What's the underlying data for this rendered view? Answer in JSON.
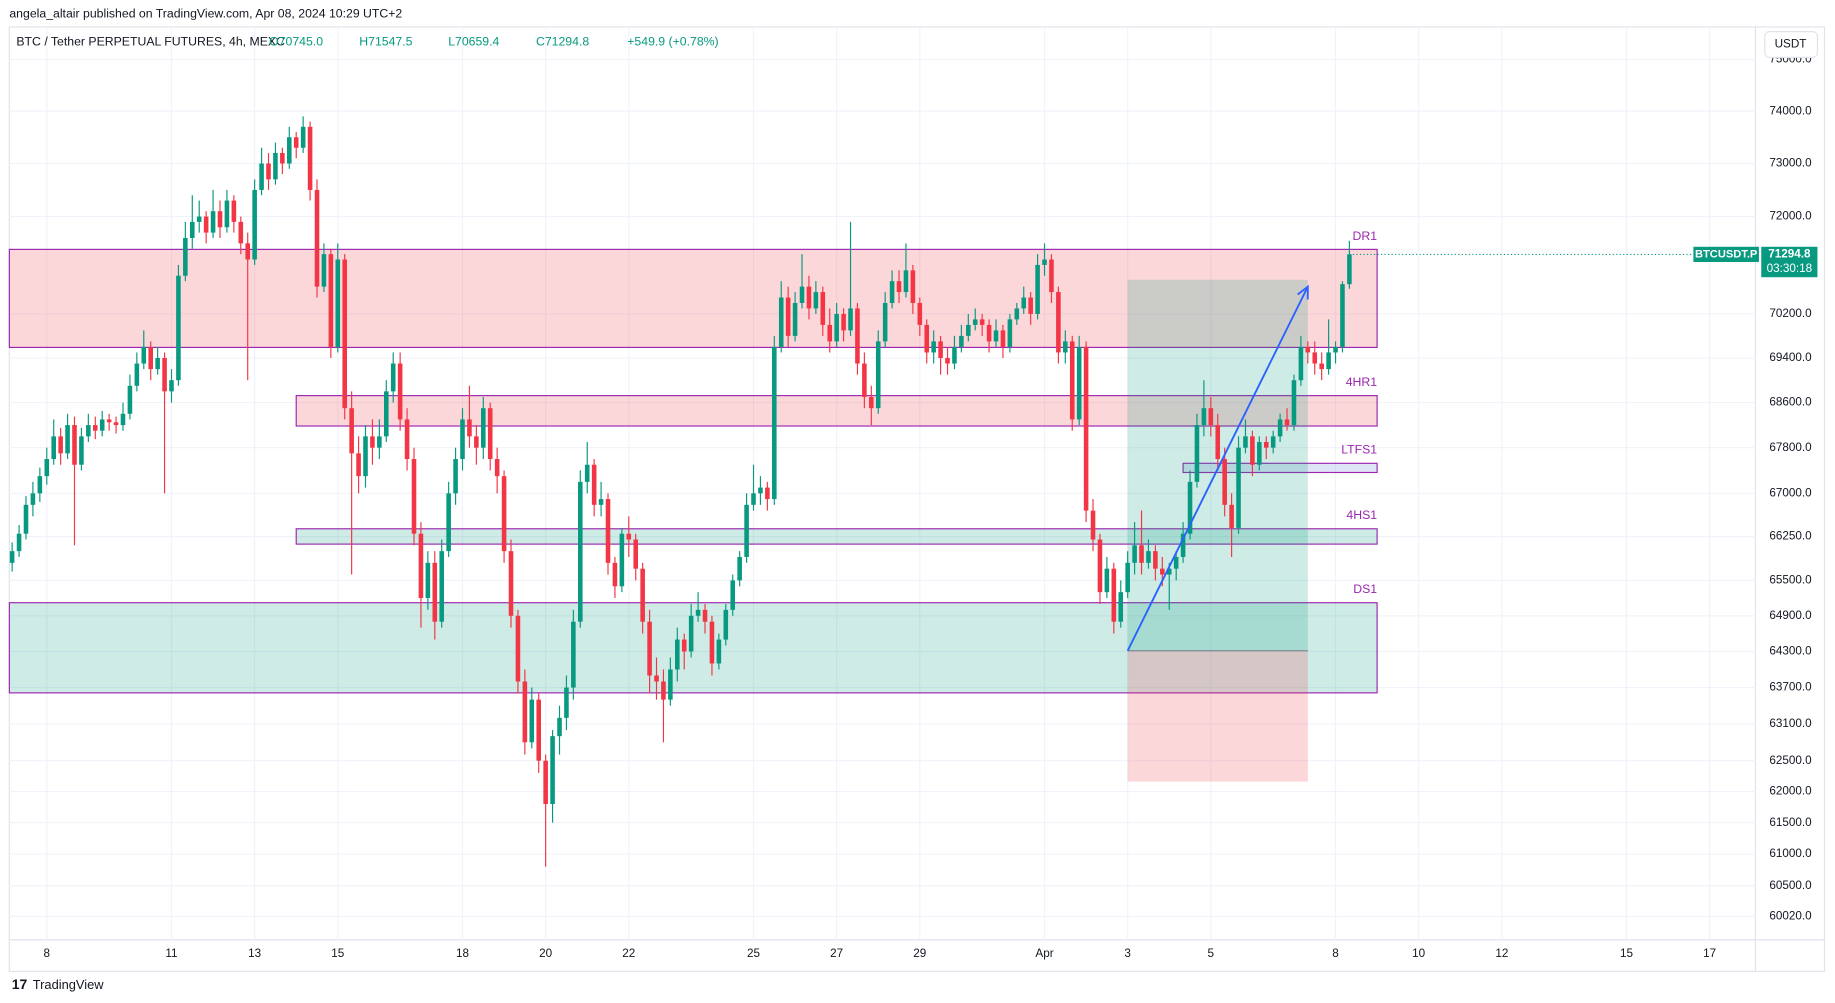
{
  "header": {
    "publisher": "angela_altair published on TradingView.com, Apr 08, 2024 10:29 UTC+2",
    "currency_button": "USDT",
    "logo": "TradingView"
  },
  "chart_data": {
    "type": "candlestick",
    "title": "BTC / Tether PERPETUAL FUTURES, 4h, MEXC",
    "ohlc_labels": [
      "O70745.0",
      "H71547.5",
      "L70659.4",
      "C71294.8",
      "+549.9 (+0.78%)"
    ],
    "up_color": "#089981",
    "down_color": "#f23645",
    "open": [
      65800,
      66000,
      66300,
      66800,
      67000,
      67300,
      67600,
      68000,
      67700,
      68200,
      67500,
      68000,
      68200,
      68100,
      68300,
      68250,
      68200,
      68400,
      68900,
      69300,
      69600,
      69200,
      69400,
      68800,
      69000,
      70900,
      71600,
      71900,
      72000,
      71700,
      72100,
      71800,
      72300,
      71900,
      71500,
      71200,
      72500,
      73000,
      72700,
      73200,
      73000,
      73500,
      73300,
      73700,
      72500,
      70700,
      71300,
      69600,
      71200,
      68500,
      67700,
      67300,
      68000,
      67800,
      68000,
      68800,
      69300,
      68300,
      67600,
      66300,
      65200,
      65800,
      64800,
      66000,
      67000,
      67600,
      68300,
      68000,
      67800,
      68500,
      67600,
      67300,
      66000,
      64900,
      63800,
      62800,
      63500,
      62500,
      61800,
      62900,
      63200,
      63700,
      64800,
      67200,
      67500,
      66800,
      66900,
      65800,
      65400,
      66300,
      66200,
      65700,
      64800,
      63900,
      63800,
      63500,
      64000,
      64500,
      64300,
      64900,
      65000,
      64800,
      64100,
      64500,
      65000,
      65500,
      65900,
      66800,
      67000,
      67100,
      66900,
      69600,
      70500,
      69800,
      70400,
      70700,
      70300,
      70600,
      70000,
      69700,
      70200,
      69900,
      70300,
      69300,
      68700,
      68500,
      69700,
      70400,
      70800,
      70600,
      71000,
      70400,
      70000,
      69500,
      69700,
      69400,
      69300,
      69600,
      69800,
      70000,
      70100,
      70000,
      69700,
      69900,
      69600,
      70100,
      70300,
      70500,
      70200,
      71100,
      71200,
      70600,
      69500,
      69700,
      68300,
      69600,
      66700,
      66200,
      65300,
      65700,
      64800,
      65300,
      65800,
      66100,
      65800,
      66000,
      65700,
      65600,
      65700,
      65900,
      66300,
      67200,
      68200,
      68500,
      68200,
      67600,
      66800,
      66400,
      67800,
      68000,
      67500,
      67900,
      67800,
      68000,
      68300,
      68200,
      69000,
      69600,
      69500,
      69300,
      69200,
      69500,
      69600,
      70745
    ],
    "high": [
      66150,
      66450,
      66950,
      67200,
      67450,
      67800,
      68300,
      68150,
      68400,
      68350,
      68150,
      68400,
      68350,
      68450,
      68400,
      68350,
      68600,
      69100,
      69500,
      69900,
      69700,
      69600,
      69500,
      69200,
      71100,
      71900,
      72400,
      72300,
      72100,
      72500,
      72300,
      72500,
      72400,
      72000,
      71700,
      72700,
      73300,
      73200,
      73400,
      73300,
      73700,
      73600,
      73900,
      73800,
      72700,
      71500,
      71400,
      71500,
      71300,
      68800,
      68000,
      68200,
      68300,
      68300,
      69000,
      69500,
      69500,
      68500,
      67800,
      66500,
      66000,
      66000,
      66200,
      67200,
      67800,
      68500,
      68900,
      68200,
      68700,
      68600,
      67800,
      67400,
      66200,
      65000,
      64000,
      63700,
      63600,
      62600,
      63000,
      63400,
      63900,
      65000,
      67400,
      67900,
      67600,
      67200,
      67000,
      65900,
      66400,
      66600,
      66300,
      65800,
      65000,
      64200,
      64000,
      64200,
      64700,
      64600,
      65100,
      65300,
      65100,
      64900,
      64600,
      65100,
      65600,
      66000,
      67000,
      67500,
      67300,
      67200,
      69800,
      70800,
      70700,
      70600,
      71300,
      70900,
      70800,
      70700,
      70300,
      70400,
      70300,
      71900,
      70400,
      69500,
      68900,
      69900,
      70600,
      71000,
      71000,
      71500,
      71100,
      70500,
      70100,
      69900,
      69800,
      69600,
      69800,
      70000,
      70200,
      70300,
      70200,
      70100,
      70100,
      70000,
      70200,
      70400,
      70700,
      70600,
      71300,
      71500,
      71300,
      70700,
      69900,
      69800,
      69800,
      69700,
      66900,
      66300,
      65900,
      65800,
      65500,
      66000,
      66500,
      66700,
      66200,
      66100,
      65900,
      65800,
      66000,
      66500,
      67400,
      68400,
      69000,
      68700,
      68400,
      67800,
      67000,
      68000,
      68300,
      68100,
      68000,
      68000,
      68100,
      68400,
      68500,
      69100,
      69800,
      69700,
      69700,
      69500,
      70100,
      69700,
      70800,
      71547.5
    ],
    "low": [
      65650,
      65900,
      66200,
      66600,
      66850,
      67150,
      67500,
      67500,
      67600,
      66100,
      67400,
      67900,
      67950,
      68000,
      68100,
      68050,
      68100,
      68300,
      68800,
      69200,
      69000,
      69100,
      67000,
      68600,
      68900,
      70800,
      71400,
      71700,
      71500,
      71600,
      71600,
      71700,
      71700,
      71300,
      69000,
      71100,
      72400,
      72500,
      72600,
      72800,
      72900,
      73100,
      73200,
      72300,
      70500,
      70600,
      69400,
      69500,
      68300,
      65600,
      67000,
      67100,
      67500,
      67600,
      67900,
      68600,
      68100,
      67400,
      66100,
      64700,
      65000,
      64500,
      64700,
      65900,
      66800,
      67400,
      67800,
      67500,
      67600,
      67400,
      67000,
      65800,
      64700,
      63600,
      62600,
      62700,
      62300,
      60800,
      61500,
      62600,
      63000,
      63500,
      64700,
      67000,
      66600,
      66600,
      65600,
      65200,
      65300,
      65900,
      65500,
      64600,
      63600,
      63500,
      62800,
      63400,
      63800,
      64000,
      64200,
      64800,
      64600,
      63900,
      64000,
      64400,
      64900,
      65400,
      65800,
      66700,
      66800,
      66700,
      66800,
      69500,
      69600,
      69700,
      70300,
      70100,
      70200,
      69800,
      69500,
      69600,
      69700,
      69800,
      69100,
      68500,
      68200,
      68400,
      69600,
      70300,
      70400,
      70500,
      70200,
      69800,
      69300,
      69300,
      69100,
      69100,
      69200,
      69500,
      69700,
      69900,
      69800,
      69500,
      69600,
      69400,
      69500,
      70000,
      70200,
      70000,
      70100,
      70900,
      70400,
      69300,
      69300,
      68100,
      68200,
      66500,
      66000,
      65100,
      65200,
      64600,
      64700,
      65200,
      65600,
      65600,
      65700,
      65500,
      65400,
      65000,
      65500,
      65800,
      66200,
      67100,
      68000,
      68000,
      67400,
      66600,
      65900,
      66300,
      67700,
      67300,
      67400,
      67600,
      67700,
      67900,
      68100,
      68100,
      68900,
      69300,
      69100,
      69000,
      69100,
      69300,
      69500,
      70659.4
    ],
    "close": [
      66000,
      66300,
      66800,
      67000,
      67300,
      67600,
      68000,
      67700,
      68200,
      67500,
      68000,
      68200,
      68100,
      68300,
      68250,
      68200,
      68400,
      68900,
      69300,
      69600,
      69200,
      69400,
      68800,
      69000,
      70900,
      71600,
      71900,
      72000,
      71700,
      72100,
      71800,
      72300,
      71900,
      71500,
      71200,
      72500,
      73000,
      72700,
      73200,
      73000,
      73500,
      73300,
      73700,
      72500,
      70700,
      71300,
      69600,
      71200,
      68500,
      67700,
      67300,
      68000,
      67800,
      68000,
      68800,
      69300,
      68300,
      67600,
      66300,
      65200,
      65800,
      64800,
      66000,
      67000,
      67600,
      68300,
      68000,
      67800,
      68500,
      67600,
      67300,
      66000,
      64900,
      63800,
      62800,
      63500,
      62500,
      61800,
      62900,
      63200,
      63700,
      64800,
      67200,
      67500,
      66800,
      66900,
      65800,
      65400,
      66300,
      66200,
      65700,
      64800,
      63900,
      63800,
      63500,
      64000,
      64500,
      64300,
      64900,
      65000,
      64800,
      64100,
      64500,
      65000,
      65500,
      65900,
      66800,
      67000,
      67100,
      66900,
      69600,
      70500,
      69800,
      70400,
      70700,
      70300,
      70600,
      70000,
      69700,
      70200,
      69900,
      70300,
      69300,
      68700,
      68500,
      69700,
      70400,
      70800,
      70600,
      71000,
      70400,
      70000,
      69500,
      69700,
      69400,
      69300,
      69600,
      69800,
      70000,
      70100,
      70000,
      69700,
      69900,
      69600,
      70100,
      70300,
      70500,
      70200,
      71100,
      71200,
      70600,
      69500,
      69700,
      68300,
      69600,
      66700,
      66200,
      65300,
      65700,
      64800,
      65300,
      65800,
      66100,
      65800,
      66000,
      65700,
      65600,
      65700,
      65900,
      66300,
      67200,
      68200,
      68500,
      68200,
      67600,
      66800,
      66400,
      67800,
      68000,
      67500,
      67900,
      67800,
      68000,
      68300,
      68200,
      69000,
      69600,
      69500,
      69300,
      69200,
      69500,
      69600,
      70745,
      71294.8
    ],
    "log_scale": true,
    "grid": true,
    "ylim": [
      59656,
      75639
    ],
    "yticks": [
      {
        "value": 75000,
        "label": "75000.0"
      },
      {
        "value": 74000,
        "label": "74000.0"
      },
      {
        "value": 73000,
        "label": "73000.0"
      },
      {
        "value": 72000,
        "label": "72000.0"
      },
      {
        "value": 70200,
        "label": "70200.0"
      },
      {
        "value": 69400,
        "label": "69400.0"
      },
      {
        "value": 68600,
        "label": "68600.0"
      },
      {
        "value": 67800,
        "label": "67800.0"
      },
      {
        "value": 67000,
        "label": "67000.0"
      },
      {
        "value": 66250,
        "label": "66250.0"
      },
      {
        "value": 65500,
        "label": "65500.0"
      },
      {
        "value": 64900,
        "label": "64900.0"
      },
      {
        "value": 64300,
        "label": "64300.0"
      },
      {
        "value": 63700,
        "label": "63700.0"
      },
      {
        "value": 63100,
        "label": "63100.0"
      },
      {
        "value": 62500,
        "label": "62500.0"
      },
      {
        "value": 62000,
        "label": "62000.0"
      },
      {
        "value": 61500,
        "label": "61500.0"
      },
      {
        "value": 61000,
        "label": "61000.0"
      },
      {
        "value": 60500,
        "label": "60500.0"
      },
      {
        "value": 60020,
        "label": "60020.0"
      }
    ],
    "xlim": [
      -0.4,
      251.6
    ],
    "xticks": [
      {
        "value": 5,
        "label": "8"
      },
      {
        "value": 23,
        "label": "11"
      },
      {
        "value": 35,
        "label": "13"
      },
      {
        "value": 47,
        "label": "15"
      },
      {
        "value": 65,
        "label": "18"
      },
      {
        "value": 77,
        "label": "20"
      },
      {
        "value": 89,
        "label": "22"
      },
      {
        "value": 107,
        "label": "25"
      },
      {
        "value": 119,
        "label": "27"
      },
      {
        "value": 131,
        "label": "29"
      },
      {
        "value": 149,
        "label": "Apr"
      },
      {
        "value": 161,
        "label": "3"
      },
      {
        "value": 173,
        "label": "5"
      },
      {
        "value": 191,
        "label": "8"
      },
      {
        "value": 203,
        "label": "10"
      },
      {
        "value": 215,
        "label": "12"
      },
      {
        "value": 233,
        "label": "15"
      },
      {
        "value": 245,
        "label": "17"
      }
    ],
    "zones": [
      {
        "label": "DR1",
        "top": 71388,
        "bottom": 69591,
        "start": -0.4,
        "end": 197,
        "color": "#f23645"
      },
      {
        "label": "4HR1",
        "top": 68724,
        "bottom": 68183,
        "start": 41,
        "end": 197,
        "color": "#f23645"
      },
      {
        "label": "LTFS1",
        "top": 67525,
        "bottom": 67364,
        "start": 169,
        "end": 197,
        "color": "#5b7bd5"
      },
      {
        "label": "4HS1",
        "top": 66385,
        "bottom": 66121,
        "start": 41,
        "end": 197,
        "color": "#089981"
      },
      {
        "label": "DS1",
        "top": 65121,
        "bottom": 63612,
        "start": -0.4,
        "end": 197,
        "color": "#089981"
      }
    ],
    "position": {
      "entry": 64312,
      "target": 70826,
      "stop": 62161,
      "start": 161,
      "end": 187
    },
    "arrow": {
      "x": [
        161,
        187
      ],
      "y": [
        64312,
        70700
      ],
      "color": "#2962ff"
    },
    "price_label": {
      "symbol": "BTCUSDT.P",
      "countdown": "03:30:18"
    }
  }
}
